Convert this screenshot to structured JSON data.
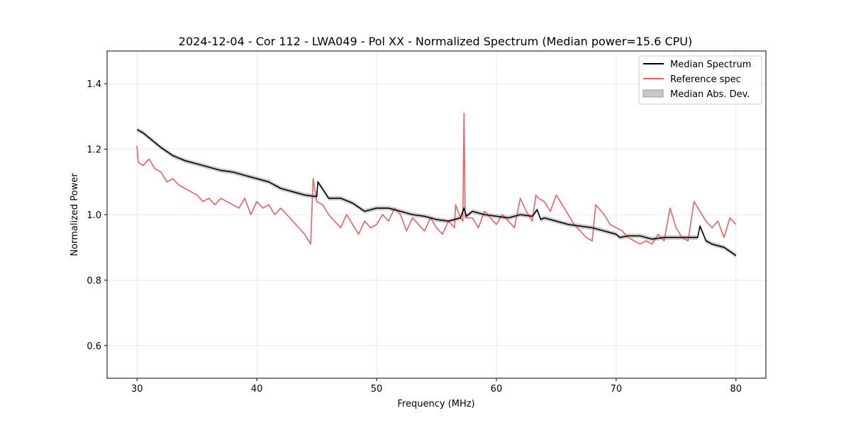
{
  "chart_data": {
    "type": "line",
    "title": "2024-12-04 - Cor 112 - LWA049 - Pol XX - Normalized Spectrum (Median power=15.6 CPU)",
    "xlabel": "Frequency (MHz)",
    "ylabel": "Normalized Power",
    "xlim": [
      27.5,
      82.5
    ],
    "ylim": [
      0.5,
      1.5
    ],
    "xticks": [
      30,
      40,
      50,
      60,
      70,
      80
    ],
    "yticks": [
      0.6,
      0.8,
      1.0,
      1.2,
      1.4
    ],
    "xtick_labels": [
      "30",
      "40",
      "50",
      "60",
      "70",
      "80"
    ],
    "ytick_labels": [
      "0.6",
      "0.8",
      "1.0",
      "1.2",
      "1.4"
    ],
    "grid": true,
    "legend_position": "top-right",
    "legend": [
      {
        "label": "Median Spectrum",
        "color": "#000000",
        "kind": "line"
      },
      {
        "label": "Reference spec",
        "color": "#f06060",
        "kind": "line"
      },
      {
        "label": "Median Abs. Dev.",
        "color": "#c8c8c8",
        "kind": "patch"
      }
    ],
    "series": [
      {
        "name": "Median Spectrum",
        "color": "#000000",
        "x": [
          30,
          30.5,
          31,
          31.5,
          32,
          33,
          34,
          35,
          36,
          37,
          38,
          39,
          40,
          41,
          42,
          43,
          44,
          45,
          45.1,
          46,
          47,
          48,
          49,
          50,
          51,
          52,
          53,
          54,
          55,
          56,
          57,
          57.3,
          57.5,
          58,
          59,
          60,
          61,
          62,
          63,
          63.4,
          63.7,
          64,
          65,
          66,
          67,
          68,
          69,
          70,
          70.3,
          71,
          72,
          73,
          74,
          75,
          76,
          76.8,
          77,
          77.5,
          78,
          79,
          80
        ],
        "y": [
          1.26,
          1.25,
          1.235,
          1.22,
          1.205,
          1.18,
          1.165,
          1.155,
          1.145,
          1.135,
          1.13,
          1.12,
          1.11,
          1.1,
          1.08,
          1.07,
          1.06,
          1.055,
          1.1,
          1.05,
          1.05,
          1.035,
          1.01,
          1.02,
          1.02,
          1.01,
          1.0,
          0.995,
          0.985,
          0.98,
          0.99,
          1.02,
          0.995,
          1.01,
          1.0,
          0.995,
          0.99,
          1.0,
          0.995,
          1.015,
          0.985,
          0.99,
          0.98,
          0.97,
          0.965,
          0.96,
          0.95,
          0.94,
          0.93,
          0.935,
          0.935,
          0.925,
          0.93,
          0.93,
          0.93,
          0.93,
          0.965,
          0.92,
          0.91,
          0.9,
          0.875
        ]
      },
      {
        "name": "Reference spec",
        "color": "#f06060",
        "x": [
          30,
          30.1,
          30.5,
          31,
          31.5,
          32,
          32.5,
          33,
          33.5,
          34,
          34.5,
          35,
          35.5,
          36,
          36.5,
          37,
          37.5,
          38,
          38.5,
          39,
          39.5,
          40,
          40.5,
          41,
          41.5,
          42,
          42.5,
          43,
          43.5,
          44,
          44.5,
          44.7,
          45,
          45.5,
          46,
          46.5,
          47,
          47.5,
          48,
          48.5,
          49,
          49.5,
          50,
          50.5,
          51,
          51.5,
          52,
          52.5,
          53,
          53.5,
          54,
          54.5,
          55,
          55.5,
          56,
          56.5,
          56.6,
          57,
          57.2,
          57.3,
          57.4,
          58,
          58.5,
          59,
          59.5,
          60,
          60.5,
          61,
          61.5,
          62,
          62.5,
          63,
          63.3,
          63.5,
          64,
          64.5,
          65,
          65.5,
          66,
          66.5,
          67,
          67.5,
          68,
          68.3,
          69,
          69.5,
          70,
          70.5,
          71,
          71.5,
          72,
          72.5,
          73,
          73.5,
          74,
          74.5,
          75,
          75.5,
          76,
          76.5,
          77,
          77.5,
          78,
          78.5,
          79,
          79.5,
          80
        ],
        "y": [
          1.21,
          1.16,
          1.15,
          1.17,
          1.14,
          1.13,
          1.1,
          1.11,
          1.09,
          1.08,
          1.07,
          1.06,
          1.04,
          1.05,
          1.03,
          1.05,
          1.04,
          1.03,
          1.02,
          1.05,
          1.0,
          1.04,
          1.02,
          1.03,
          1.0,
          1.02,
          1.0,
          0.98,
          0.96,
          0.94,
          0.91,
          1.11,
          1.04,
          1.03,
          1.0,
          0.98,
          0.96,
          1.0,
          0.97,
          0.94,
          0.98,
          0.96,
          0.97,
          1.0,
          0.98,
          1.02,
          1.0,
          0.95,
          0.99,
          0.97,
          0.95,
          0.99,
          0.96,
          0.94,
          0.98,
          0.96,
          1.03,
          0.99,
          0.98,
          1.31,
          0.99,
          0.99,
          0.96,
          1.01,
          0.99,
          0.97,
          1.0,
          0.98,
          0.96,
          1.05,
          1.01,
          0.98,
          1.06,
          1.05,
          1.04,
          1.01,
          1.06,
          1.03,
          1.0,
          0.97,
          0.95,
          0.93,
          0.92,
          1.03,
          1.0,
          0.97,
          0.96,
          0.95,
          0.93,
          0.92,
          0.91,
          0.92,
          0.91,
          0.94,
          0.92,
          1.02,
          0.96,
          0.93,
          0.92,
          1.04,
          1.01,
          0.98,
          0.96,
          0.98,
          0.93,
          0.99,
          0.97
        ]
      }
    ],
    "band": {
      "name": "Median Abs. Dev.",
      "color": "#c8c8c8",
      "half_width": 0.007
    }
  }
}
